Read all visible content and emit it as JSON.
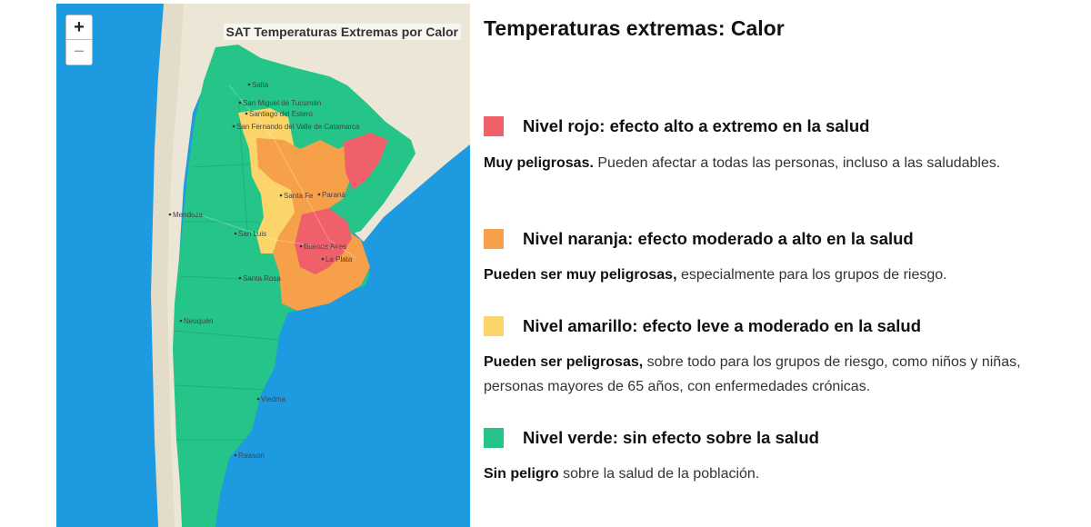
{
  "map": {
    "title": "SAT Temperaturas Extremas por Calor",
    "zoom_in": "+",
    "zoom_out": "−",
    "cities": [
      "Salta",
      "San Miguel de Tucumán",
      "Santiago del Estero",
      "San Fernando del Valle de Catamarca",
      "Santa Fe",
      "Paraná",
      "Mendoza",
      "San Luis",
      "Buenos Aires",
      "La Plata",
      "Santa Rosa",
      "Neuquén",
      "Viedma",
      "Rawson"
    ]
  },
  "legend": {
    "title": "Temperaturas extremas: Calor",
    "levels": [
      {
        "color": "#f0606a",
        "title": "Nivel rojo: efecto alto a extremo en la salud",
        "desc_bold": "Muy peligrosas.",
        "desc_text": " Pueden afectar a todas las personas, incluso a las saludables."
      },
      {
        "color": "#f7a04a",
        "title": "Nivel naranja: efecto moderado a alto en la salud",
        "desc_bold": "Pueden ser muy peligrosas,",
        "desc_text": " especialmente para los grupos de riesgo."
      },
      {
        "color": "#fbd56a",
        "title": "Nivel amarillo: efecto leve a moderado en la salud",
        "desc_bold": "Pueden ser peligrosas,",
        "desc_text": " sobre todo para los grupos de riesgo, como niños y niñas, personas mayores de 65 años, con enfermedades crónicas."
      },
      {
        "color": "#25c488",
        "title": "Nivel verde: sin efecto sobre la salud",
        "desc_bold": "Sin peligro",
        "desc_text": " sobre la salud de la población."
      }
    ]
  }
}
